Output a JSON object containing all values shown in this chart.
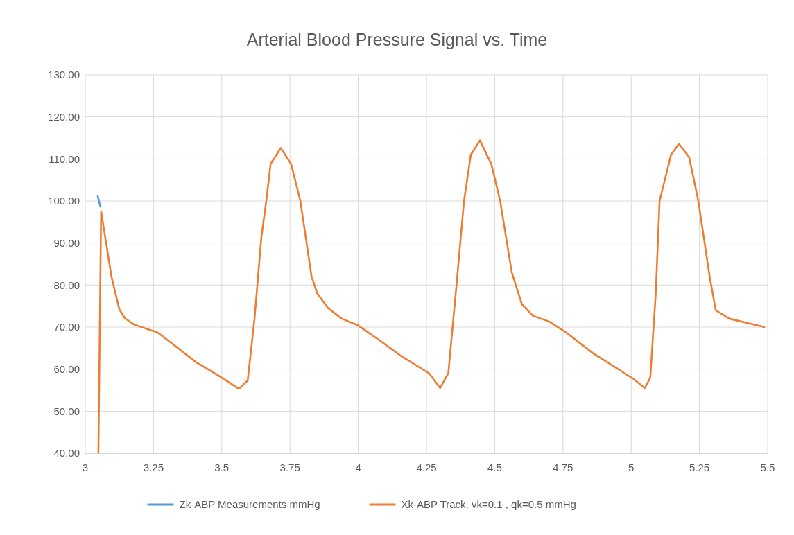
{
  "chart_data": {
    "type": "line",
    "title": "Arterial Blood Pressure Signal vs. Time",
    "xlim": [
      3,
      5.5
    ],
    "xticks": [
      3,
      3.25,
      3.5,
      3.75,
      4,
      4.25,
      4.5,
      4.75,
      5,
      5.25,
      5.5
    ],
    "ylim": [
      40,
      130
    ],
    "yticks": [
      {
        "value": 40,
        "label": "40.00"
      },
      {
        "value": 50,
        "label": "50.00"
      },
      {
        "value": 60,
        "label": "60.00"
      },
      {
        "value": 70,
        "label": "70.00"
      },
      {
        "value": 80,
        "label": "80.00"
      },
      {
        "value": 90,
        "label": "90.00"
      },
      {
        "value": 100,
        "label": "100.00"
      },
      {
        "value": 110,
        "label": "110.00"
      },
      {
        "value": 120,
        "label": "120.00"
      },
      {
        "value": 130,
        "label": "130.00"
      }
    ],
    "grid": true,
    "legend": "bottom",
    "line_style": "solid",
    "series": [
      {
        "name": "Zk-ABP Measurements mmHg",
        "color": "#5b9bd5",
        "x": [
          3.045,
          3.056
        ],
        "values": [
          101.3,
          98.5
        ]
      },
      {
        "name": "Xk-ABP Track, vk=0.1 , qk=0.5 mmHg",
        "color": "#ed7d31",
        "x": [
          3.048,
          3.058,
          3.096,
          3.125,
          3.145,
          3.179,
          3.238,
          3.263,
          3.32,
          3.405,
          3.49,
          3.563,
          3.595,
          3.62,
          3.645,
          3.663,
          3.679,
          3.716,
          3.754,
          3.788,
          3.829,
          3.85,
          3.89,
          3.94,
          4.0,
          4.075,
          4.16,
          4.26,
          4.3,
          4.33,
          4.36,
          4.3875,
          4.4125,
          4.446,
          4.4875,
          4.52,
          4.5625,
          4.6,
          4.64,
          4.7,
          4.76,
          4.86,
          4.96,
          5.01,
          5.05,
          5.07,
          5.09,
          5.104,
          5.146,
          5.175,
          5.2125,
          5.246,
          5.2875,
          5.31,
          5.36,
          5.425,
          5.49
        ],
        "values": [
          40,
          97.5,
          82,
          74.2,
          72.1,
          70.6,
          69.3,
          68.8,
          66,
          61.7,
          58.4,
          55.3,
          57.3,
          72,
          91.3,
          100,
          108.8,
          112.6,
          108.8,
          100,
          82,
          78,
          74.5,
          72,
          70.4,
          67,
          63,
          59,
          55.5,
          59,
          80,
          100,
          111,
          114.4,
          108.8,
          100,
          83,
          75.4,
          72.7,
          71.3,
          68.8,
          63.8,
          59.7,
          57.6,
          55.5,
          58,
          78,
          100,
          111,
          113.6,
          110.4,
          100,
          82,
          74,
          72,
          71,
          70
        ]
      }
    ]
  }
}
